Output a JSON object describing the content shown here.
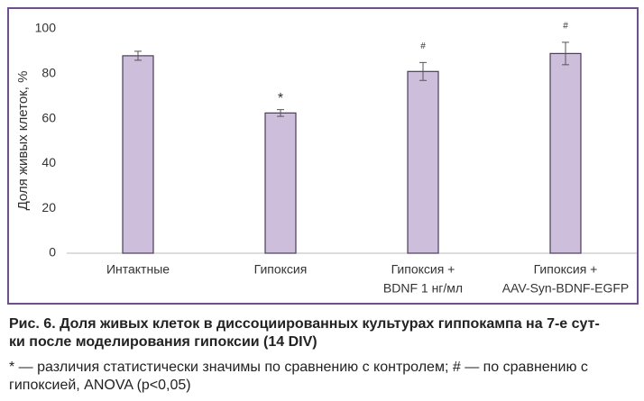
{
  "chart_data": {
    "type": "bar",
    "categories": [
      [
        "Интактные"
      ],
      [
        "Гипоксия"
      ],
      [
        "Гипоксия +",
        "BDNF 1 нг/мл"
      ],
      [
        "Гипоксия +",
        "AAV-Syn-BDNF-EGFP"
      ]
    ],
    "values": [
      88,
      62.5,
      81,
      89
    ],
    "errors": [
      2,
      1.5,
      4,
      5
    ],
    "annotations": [
      null,
      "*",
      "#",
      "#"
    ],
    "color": "#cdbfdc",
    "ylabel": "Доля живых клеток, %",
    "ylim": [
      0,
      100
    ],
    "yticks": [
      0,
      20,
      40,
      60,
      80,
      100
    ],
    "grid": false
  },
  "caption": {
    "title": [
      "Рис. 6. Доля живых клеток в диссоциированных культурах гиппокампа на 7-е сут-",
      "ки после моделирования гипоксии (14 DIV)"
    ],
    "note": [
      "* — различия статистически значимы по сравнению с контролем; # — по сравнению с",
      "гипоксией, ANOVA (p<0,05)"
    ]
  }
}
